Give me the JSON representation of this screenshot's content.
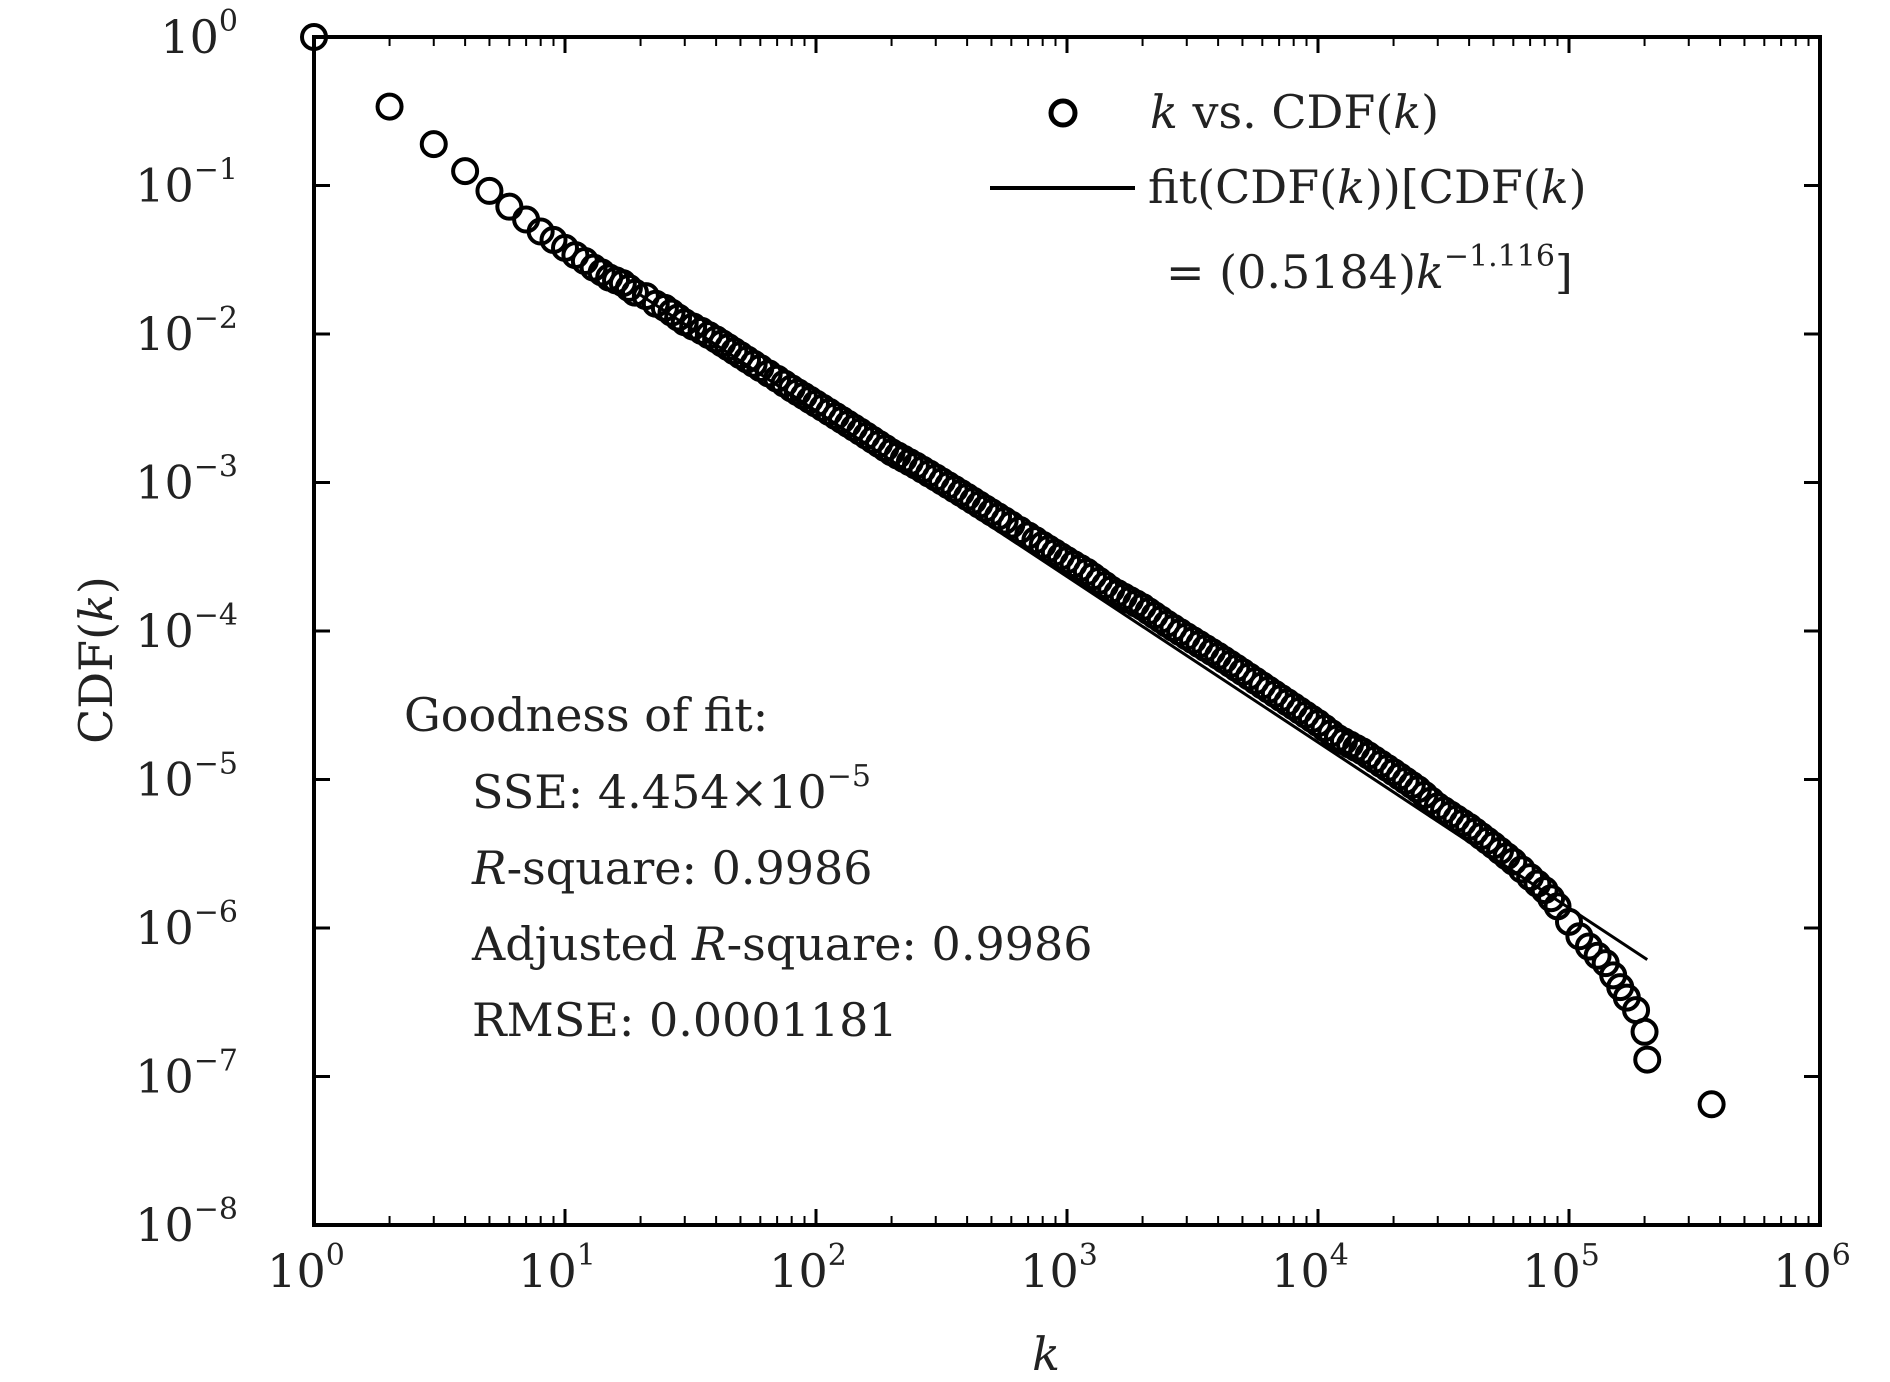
{
  "chart_data": {
    "type": "scatter",
    "x_scale": "log",
    "y_scale": "log",
    "xlim": [
      1,
      1000000
    ],
    "ylim": [
      1e-08,
      1
    ],
    "xlabel": "k",
    "ylabel": "CDF(k)",
    "x_ticks": [
      {
        "base": "10",
        "exp": "0",
        "value": 1
      },
      {
        "base": "10",
        "exp": "1",
        "value": 10
      },
      {
        "base": "10",
        "exp": "2",
        "value": 100
      },
      {
        "base": "10",
        "exp": "3",
        "value": 1000
      },
      {
        "base": "10",
        "exp": "4",
        "value": 10000
      },
      {
        "base": "10",
        "exp": "5",
        "value": 100000
      },
      {
        "base": "10",
        "exp": "6",
        "value": 1000000
      }
    ],
    "y_ticks": [
      {
        "base": "10",
        "exp": "0",
        "value": 1
      },
      {
        "base": "10",
        "exp": "−1",
        "value": 0.1
      },
      {
        "base": "10",
        "exp": "−2",
        "value": 0.01
      },
      {
        "base": "10",
        "exp": "−3",
        "value": 0.001
      },
      {
        "base": "10",
        "exp": "−4",
        "value": 0.0001
      },
      {
        "base": "10",
        "exp": "−5",
        "value": 1e-05
      },
      {
        "base": "10",
        "exp": "−6",
        "value": 1e-06
      },
      {
        "base": "10",
        "exp": "−7",
        "value": 1e-07
      },
      {
        "base": "10",
        "exp": "−8",
        "value": 1e-08
      }
    ],
    "grid": false,
    "legend_position": "top-right",
    "series": [
      {
        "name": "k vs. CDF(k)",
        "marker": "open-circle",
        "color": "#000000",
        "points": [
          [
            1,
            1
          ],
          [
            2,
            0.34
          ],
          [
            3,
            0.19
          ],
          [
            4,
            0.125
          ],
          [
            5,
            0.092
          ],
          [
            6,
            0.072
          ],
          [
            7,
            0.059
          ],
          [
            8,
            0.049
          ],
          [
            9,
            0.043
          ],
          [
            10,
            0.038
          ],
          [
            11,
            0.034
          ],
          [
            12,
            0.031
          ],
          [
            13,
            0.028
          ],
          [
            14,
            0.026
          ],
          [
            15,
            0.024
          ],
          [
            17,
            0.022
          ],
          [
            19,
            0.019
          ],
          [
            21,
            0.018
          ],
          [
            23,
            0.016
          ],
          [
            25,
            0.015
          ],
          [
            30,
            0.012
          ],
          [
            35,
            0.0105
          ],
          [
            40,
            0.0092
          ],
          [
            50,
            0.0072
          ],
          [
            60,
            0.0059
          ],
          [
            70,
            0.005
          ],
          [
            80,
            0.0043
          ],
          [
            100,
            0.0034
          ],
          [
            120,
            0.0028
          ],
          [
            150,
            0.0022
          ],
          [
            200,
            0.0016
          ],
          [
            250,
            0.0013
          ],
          [
            300,
            0.00108
          ],
          [
            400,
            0.0008
          ],
          [
            500,
            0.00063
          ],
          [
            600,
            0.00052
          ],
          [
            700,
            0.00044
          ],
          [
            800,
            0.00038
          ],
          [
            1000,
            0.0003
          ],
          [
            1200,
            0.00025
          ],
          [
            1500,
            0.00019
          ],
          [
            2000,
            0.000145
          ],
          [
            2500,
            0.000112
          ],
          [
            3000,
            9.2e-05
          ],
          [
            4000,
            6.8e-05
          ],
          [
            5000,
            5.3e-05
          ],
          [
            6000,
            4.3e-05
          ],
          [
            8000,
            3.1e-05
          ],
          [
            10000,
            2.4e-05
          ],
          [
            12000,
            1.9e-05
          ],
          [
            15000,
            1.55e-05
          ],
          [
            20000,
            1.12e-05
          ],
          [
            25000,
            8.6e-06
          ],
          [
            30000,
            6.6e-06
          ],
          [
            40000,
            4.8e-06
          ],
          [
            50000,
            3.6e-06
          ],
          [
            60000,
            2.8e-06
          ],
          [
            70000,
            2.2e-06
          ],
          [
            80000,
            1.8e-06
          ],
          [
            90000,
            1.4e-06
          ],
          [
            100000,
            1.1e-06
          ],
          [
            110000,
            8.8e-07
          ],
          [
            120000,
            7.5e-07
          ],
          [
            130000,
            6.5e-07
          ],
          [
            140000,
            5.8e-07
          ],
          [
            150000,
            4.8e-07
          ],
          [
            160000,
            4e-07
          ],
          [
            170000,
            3.4e-07
          ],
          [
            185000,
            2.8e-07
          ],
          [
            200000,
            2e-07
          ],
          [
            205000,
            1.3e-07
          ],
          [
            370000,
            6.5e-08
          ]
        ]
      },
      {
        "name": "fit(CDF(k))[CDF(k) = (0.5184)k^−1.116]",
        "type": "line",
        "color": "#000000",
        "equation": {
          "a": 0.5184,
          "b": -1.116
        },
        "x_range": [
          20,
          205000
        ]
      }
    ],
    "legend": {
      "marker_label_main": "k",
      "marker_label_rest": " vs. CDF(",
      "marker_label_k": "k",
      "marker_label_close": ")",
      "fit_line1_a": "fit(CDF(",
      "fit_line1_k": "k",
      "fit_line1_b": "))[CDF(",
      "fit_line1_k2": "k",
      "fit_line1_c": ")",
      "fit_line2_a": "= (0.5184)",
      "fit_line2_k": "k",
      "fit_line2_exp": "−1.116",
      "fit_line2_close": "]"
    },
    "annotation": {
      "heading": "Goodness of fit:",
      "sse_label": "SSE: 4.454×10",
      "sse_exp": "−5",
      "rsq_R": "R",
      "rsq_rest": "-square: 0.9986",
      "adj_prefix": "Adjusted ",
      "adj_R": "R",
      "adj_rest": "-square: 0.9986",
      "rmse": "RMSE: 0.0001181"
    },
    "axis_labels": {
      "ylabel_prefix": "CDF(",
      "ylabel_k": "k",
      "ylabel_suffix": ")",
      "xlabel_k": "k"
    }
  }
}
